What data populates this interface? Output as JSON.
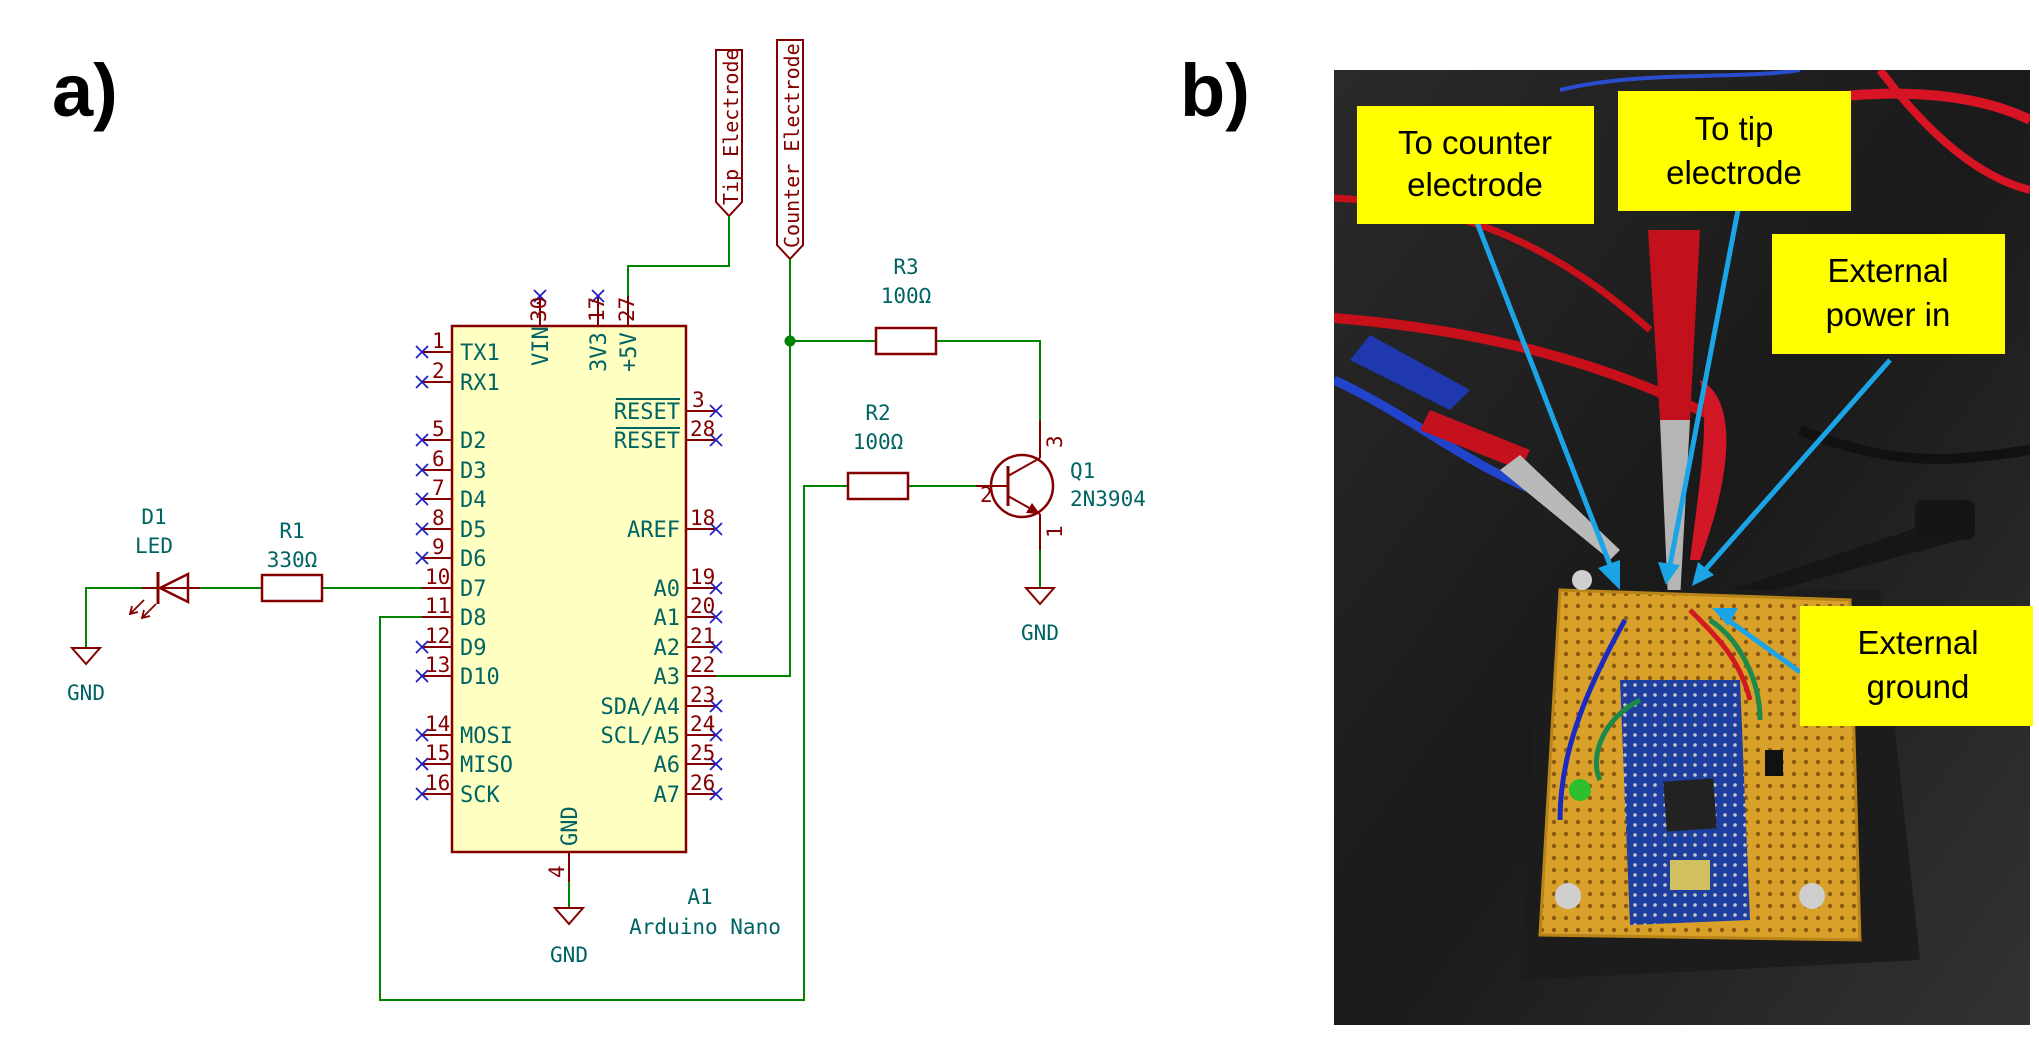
{
  "panels": {
    "a": "a)",
    "b": "b)"
  },
  "net_labels": {
    "tip": "Tip Electrode",
    "counter": "Counter Electrode"
  },
  "arduino": {
    "ref": "A1",
    "value": "Arduino Nano",
    "top_pins": [
      {
        "num": "30",
        "name": "VIN"
      },
      {
        "num": "17",
        "name": "3V3"
      },
      {
        "num": "27",
        "name": "+5V"
      }
    ],
    "left_pins": [
      {
        "num": "1",
        "name": "TX1"
      },
      {
        "num": "2",
        "name": "RX1"
      },
      {
        "num": "5",
        "name": "D2"
      },
      {
        "num": "6",
        "name": "D3"
      },
      {
        "num": "7",
        "name": "D4"
      },
      {
        "num": "8",
        "name": "D5"
      },
      {
        "num": "9",
        "name": "D6"
      },
      {
        "num": "10",
        "name": "D7"
      },
      {
        "num": "11",
        "name": "D8"
      },
      {
        "num": "12",
        "name": "D9"
      },
      {
        "num": "13",
        "name": "D10"
      },
      {
        "num": "14",
        "name": "MOSI"
      },
      {
        "num": "15",
        "name": "MISO"
      },
      {
        "num": "16",
        "name": "SCK"
      }
    ],
    "right_pins": [
      {
        "num": "3",
        "name": "RESET"
      },
      {
        "num": "28",
        "name": "RESET"
      },
      {
        "num": "18",
        "name": "AREF"
      },
      {
        "num": "19",
        "name": "A0"
      },
      {
        "num": "20",
        "name": "A1"
      },
      {
        "num": "21",
        "name": "A2"
      },
      {
        "num": "22",
        "name": "A3"
      },
      {
        "num": "23",
        "name": "SDA/A4"
      },
      {
        "num": "24",
        "name": "SCL/A5"
      },
      {
        "num": "25",
        "name": "A6"
      },
      {
        "num": "26",
        "name": "A7"
      }
    ],
    "gnd_pin": {
      "num": "4",
      "name": "GND"
    }
  },
  "components": {
    "r1": {
      "ref": "R1",
      "value": "330Ω"
    },
    "r2": {
      "ref": "R2",
      "value": "100Ω"
    },
    "r3": {
      "ref": "R3",
      "value": "100Ω"
    },
    "d1": {
      "ref": "D1",
      "value": "LED"
    },
    "q1": {
      "ref": "Q1",
      "value": "2N3904",
      "pins": {
        "b": "2",
        "c": "3",
        "e": "1"
      }
    }
  },
  "ground_label": "GND",
  "photo_callouts": {
    "counter": [
      "To counter",
      "electrode"
    ],
    "tip": [
      "To tip",
      "electrode"
    ],
    "power": [
      "External",
      "power in"
    ],
    "ground": [
      "External",
      "ground"
    ]
  },
  "colors": {
    "schematic_body_fill": "#ffffc2",
    "schematic_line": "#840000",
    "wire": "#008400",
    "text": "#006464",
    "callout_fill": "#ffff00",
    "callout_arrow": "#1ca5e6",
    "pcb": "#d9a12a",
    "arduino_board": "#1e3fa0"
  }
}
